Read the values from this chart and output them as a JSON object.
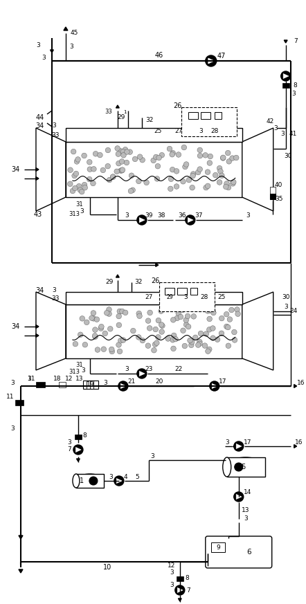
{
  "bg_color": "#ffffff",
  "line_color": "#000000",
  "fig_width": 4.42,
  "fig_height": 8.73,
  "dpi": 100
}
